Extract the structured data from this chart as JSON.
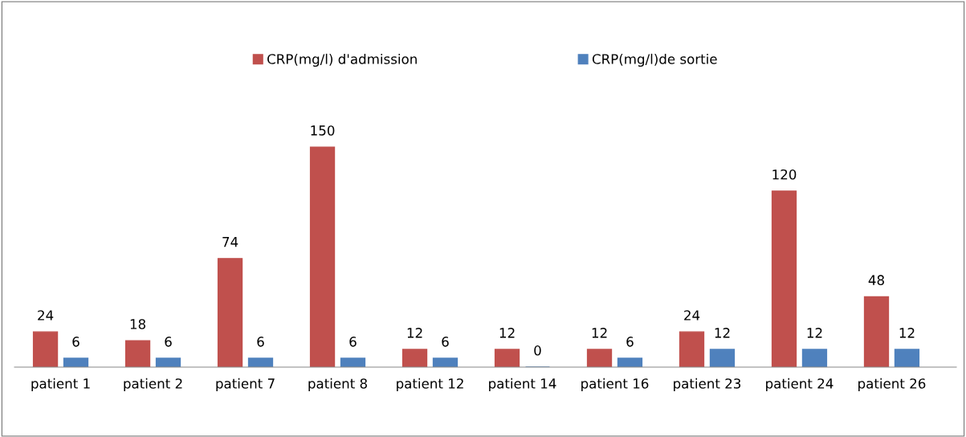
{
  "chart_data": {
    "type": "bar",
    "categories": [
      "patient 1",
      "patient 2",
      "patient 7",
      "patient 8",
      "patient 12",
      "patient 14",
      "patient 16",
      "patient 23",
      "patient 24",
      "patient 26"
    ],
    "series": [
      {
        "name": "CRP(mg/l) d'admission",
        "color": "#c0504d",
        "values": [
          24,
          18,
          74,
          150,
          12,
          12,
          12,
          24,
          120,
          48
        ]
      },
      {
        "name": "CRP(mg/l)de sortie",
        "color": "#4f81bd",
        "values": [
          6,
          6,
          6,
          6,
          6,
          0,
          6,
          12,
          12,
          12
        ]
      }
    ],
    "data_labels": true,
    "legend": "top",
    "grid": false
  }
}
